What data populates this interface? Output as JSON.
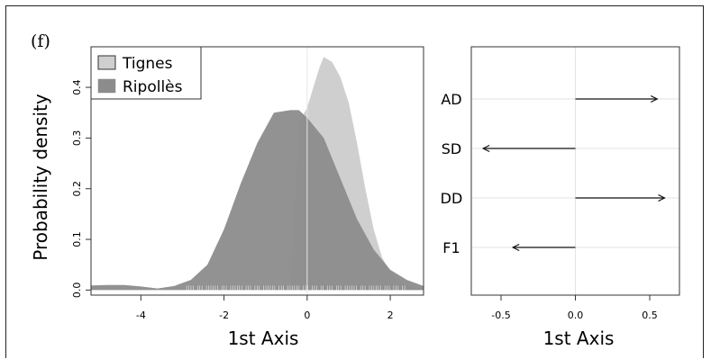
{
  "panel_label": "(f)",
  "chart_data": [
    {
      "type": "area",
      "xlabel": "1st Axis",
      "ylabel": "Probability density",
      "xlim": [
        -5.2,
        2.8
      ],
      "ylim": [
        -0.01,
        0.48
      ],
      "xticks": [
        -4,
        -2,
        0,
        2
      ],
      "yticks": [
        0.0,
        0.1,
        0.2,
        0.3,
        0.4
      ],
      "xtick_labels": [
        "-4",
        "-2",
        "0",
        "2"
      ],
      "ytick_labels": [
        "0.0",
        "0.1",
        "0.2",
        "0.3",
        "0.4"
      ],
      "legend_position": "top-left",
      "grid": false,
      "series": [
        {
          "name": "Tignes",
          "color": "#cfcfcf",
          "x": [
            -0.4,
            -0.2,
            0.0,
            0.15,
            0.3,
            0.4,
            0.6,
            0.8,
            1.0,
            1.2,
            1.4,
            1.6,
            1.8,
            2.0,
            2.2,
            2.4,
            2.6,
            2.8
          ],
          "y": [
            0.0,
            0.33,
            0.36,
            0.4,
            0.44,
            0.46,
            0.45,
            0.42,
            0.37,
            0.29,
            0.2,
            0.12,
            0.065,
            0.035,
            0.02,
            0.01,
            0.005,
            0.002
          ]
        },
        {
          "name": "Ripollès",
          "color": "#8c8c8c",
          "x": [
            -5.2,
            -4.8,
            -4.4,
            -4.0,
            -3.6,
            -3.2,
            -2.8,
            -2.4,
            -2.0,
            -1.6,
            -1.2,
            -0.8,
            -0.4,
            -0.2,
            0.0,
            0.4,
            0.8,
            1.2,
            1.6,
            2.0,
            2.4,
            2.8
          ],
          "y": [
            0.009,
            0.01,
            0.01,
            0.007,
            0.003,
            0.008,
            0.02,
            0.05,
            0.12,
            0.21,
            0.29,
            0.35,
            0.355,
            0.355,
            0.34,
            0.3,
            0.22,
            0.14,
            0.08,
            0.04,
            0.02,
            0.008
          ]
        }
      ]
    },
    {
      "type": "arrows",
      "xlabel": "1st Axis",
      "xlim": [
        -0.7,
        0.7
      ],
      "xticks": [
        -0.5,
        0.0,
        0.5
      ],
      "xtick_labels": [
        "-0.5",
        "0.0",
        "0.5"
      ],
      "grid": true,
      "categories": [
        "AD",
        "SD",
        "DD",
        "F1"
      ],
      "values": [
        0.55,
        -0.62,
        0.6,
        -0.42
      ]
    }
  ]
}
